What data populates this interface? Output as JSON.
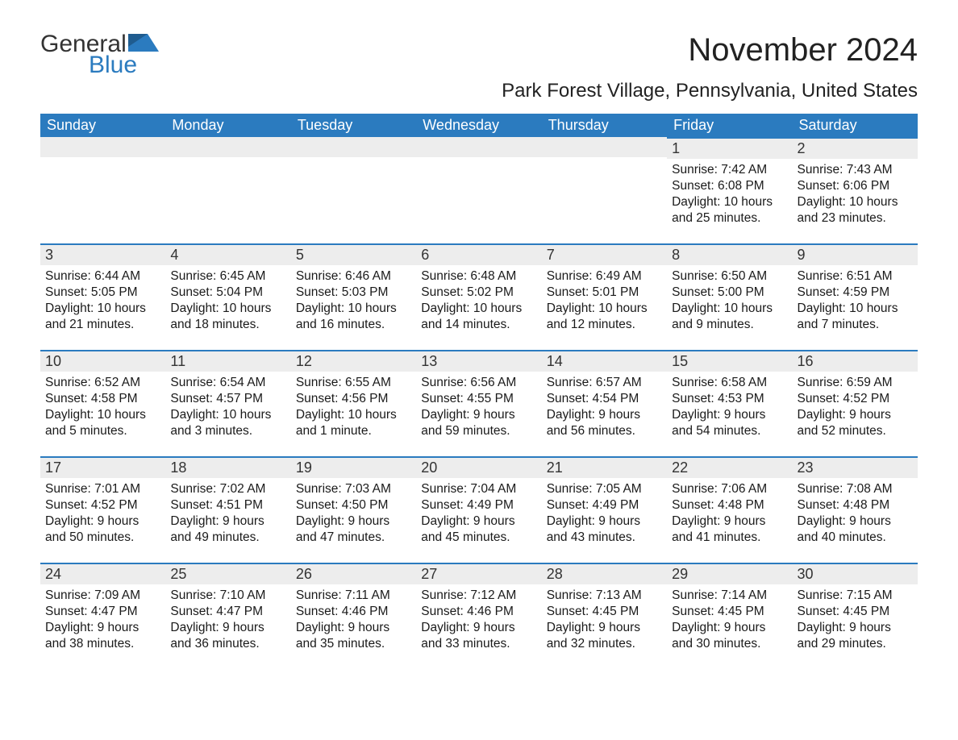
{
  "logo": {
    "general": "General",
    "blue": "Blue"
  },
  "title": "November 2024",
  "location": "Park Forest Village, Pennsylvania, United States",
  "colors": {
    "header_bg": "#2b7bbf",
    "header_text": "#ffffff",
    "day_header_bg": "#ededed",
    "day_header_border": "#2b7bbf",
    "page_bg": "#ffffff",
    "text": "#222222"
  },
  "weekdays": [
    "Sunday",
    "Monday",
    "Tuesday",
    "Wednesday",
    "Thursday",
    "Friday",
    "Saturday"
  ],
  "weeks": [
    [
      null,
      null,
      null,
      null,
      null,
      {
        "day": "1",
        "sunrise": "Sunrise: 7:42 AM",
        "sunset": "Sunset: 6:08 PM",
        "dl1": "Daylight: 10 hours",
        "dl2": "and 25 minutes."
      },
      {
        "day": "2",
        "sunrise": "Sunrise: 7:43 AM",
        "sunset": "Sunset: 6:06 PM",
        "dl1": "Daylight: 10 hours",
        "dl2": "and 23 minutes."
      }
    ],
    [
      {
        "day": "3",
        "sunrise": "Sunrise: 6:44 AM",
        "sunset": "Sunset: 5:05 PM",
        "dl1": "Daylight: 10 hours",
        "dl2": "and 21 minutes."
      },
      {
        "day": "4",
        "sunrise": "Sunrise: 6:45 AM",
        "sunset": "Sunset: 5:04 PM",
        "dl1": "Daylight: 10 hours",
        "dl2": "and 18 minutes."
      },
      {
        "day": "5",
        "sunrise": "Sunrise: 6:46 AM",
        "sunset": "Sunset: 5:03 PM",
        "dl1": "Daylight: 10 hours",
        "dl2": "and 16 minutes."
      },
      {
        "day": "6",
        "sunrise": "Sunrise: 6:48 AM",
        "sunset": "Sunset: 5:02 PM",
        "dl1": "Daylight: 10 hours",
        "dl2": "and 14 minutes."
      },
      {
        "day": "7",
        "sunrise": "Sunrise: 6:49 AM",
        "sunset": "Sunset: 5:01 PM",
        "dl1": "Daylight: 10 hours",
        "dl2": "and 12 minutes."
      },
      {
        "day": "8",
        "sunrise": "Sunrise: 6:50 AM",
        "sunset": "Sunset: 5:00 PM",
        "dl1": "Daylight: 10 hours",
        "dl2": "and 9 minutes."
      },
      {
        "day": "9",
        "sunrise": "Sunrise: 6:51 AM",
        "sunset": "Sunset: 4:59 PM",
        "dl1": "Daylight: 10 hours",
        "dl2": "and 7 minutes."
      }
    ],
    [
      {
        "day": "10",
        "sunrise": "Sunrise: 6:52 AM",
        "sunset": "Sunset: 4:58 PM",
        "dl1": "Daylight: 10 hours",
        "dl2": "and 5 minutes."
      },
      {
        "day": "11",
        "sunrise": "Sunrise: 6:54 AM",
        "sunset": "Sunset: 4:57 PM",
        "dl1": "Daylight: 10 hours",
        "dl2": "and 3 minutes."
      },
      {
        "day": "12",
        "sunrise": "Sunrise: 6:55 AM",
        "sunset": "Sunset: 4:56 PM",
        "dl1": "Daylight: 10 hours",
        "dl2": "and 1 minute."
      },
      {
        "day": "13",
        "sunrise": "Sunrise: 6:56 AM",
        "sunset": "Sunset: 4:55 PM",
        "dl1": "Daylight: 9 hours",
        "dl2": "and 59 minutes."
      },
      {
        "day": "14",
        "sunrise": "Sunrise: 6:57 AM",
        "sunset": "Sunset: 4:54 PM",
        "dl1": "Daylight: 9 hours",
        "dl2": "and 56 minutes."
      },
      {
        "day": "15",
        "sunrise": "Sunrise: 6:58 AM",
        "sunset": "Sunset: 4:53 PM",
        "dl1": "Daylight: 9 hours",
        "dl2": "and 54 minutes."
      },
      {
        "day": "16",
        "sunrise": "Sunrise: 6:59 AM",
        "sunset": "Sunset: 4:52 PM",
        "dl1": "Daylight: 9 hours",
        "dl2": "and 52 minutes."
      }
    ],
    [
      {
        "day": "17",
        "sunrise": "Sunrise: 7:01 AM",
        "sunset": "Sunset: 4:52 PM",
        "dl1": "Daylight: 9 hours",
        "dl2": "and 50 minutes."
      },
      {
        "day": "18",
        "sunrise": "Sunrise: 7:02 AM",
        "sunset": "Sunset: 4:51 PM",
        "dl1": "Daylight: 9 hours",
        "dl2": "and 49 minutes."
      },
      {
        "day": "19",
        "sunrise": "Sunrise: 7:03 AM",
        "sunset": "Sunset: 4:50 PM",
        "dl1": "Daylight: 9 hours",
        "dl2": "and 47 minutes."
      },
      {
        "day": "20",
        "sunrise": "Sunrise: 7:04 AM",
        "sunset": "Sunset: 4:49 PM",
        "dl1": "Daylight: 9 hours",
        "dl2": "and 45 minutes."
      },
      {
        "day": "21",
        "sunrise": "Sunrise: 7:05 AM",
        "sunset": "Sunset: 4:49 PM",
        "dl1": "Daylight: 9 hours",
        "dl2": "and 43 minutes."
      },
      {
        "day": "22",
        "sunrise": "Sunrise: 7:06 AM",
        "sunset": "Sunset: 4:48 PM",
        "dl1": "Daylight: 9 hours",
        "dl2": "and 41 minutes."
      },
      {
        "day": "23",
        "sunrise": "Sunrise: 7:08 AM",
        "sunset": "Sunset: 4:48 PM",
        "dl1": "Daylight: 9 hours",
        "dl2": "and 40 minutes."
      }
    ],
    [
      {
        "day": "24",
        "sunrise": "Sunrise: 7:09 AM",
        "sunset": "Sunset: 4:47 PM",
        "dl1": "Daylight: 9 hours",
        "dl2": "and 38 minutes."
      },
      {
        "day": "25",
        "sunrise": "Sunrise: 7:10 AM",
        "sunset": "Sunset: 4:47 PM",
        "dl1": "Daylight: 9 hours",
        "dl2": "and 36 minutes."
      },
      {
        "day": "26",
        "sunrise": "Sunrise: 7:11 AM",
        "sunset": "Sunset: 4:46 PM",
        "dl1": "Daylight: 9 hours",
        "dl2": "and 35 minutes."
      },
      {
        "day": "27",
        "sunrise": "Sunrise: 7:12 AM",
        "sunset": "Sunset: 4:46 PM",
        "dl1": "Daylight: 9 hours",
        "dl2": "and 33 minutes."
      },
      {
        "day": "28",
        "sunrise": "Sunrise: 7:13 AM",
        "sunset": "Sunset: 4:45 PM",
        "dl1": "Daylight: 9 hours",
        "dl2": "and 32 minutes."
      },
      {
        "day": "29",
        "sunrise": "Sunrise: 7:14 AM",
        "sunset": "Sunset: 4:45 PM",
        "dl1": "Daylight: 9 hours",
        "dl2": "and 30 minutes."
      },
      {
        "day": "30",
        "sunrise": "Sunrise: 7:15 AM",
        "sunset": "Sunset: 4:45 PM",
        "dl1": "Daylight: 9 hours",
        "dl2": "and 29 minutes."
      }
    ]
  ]
}
